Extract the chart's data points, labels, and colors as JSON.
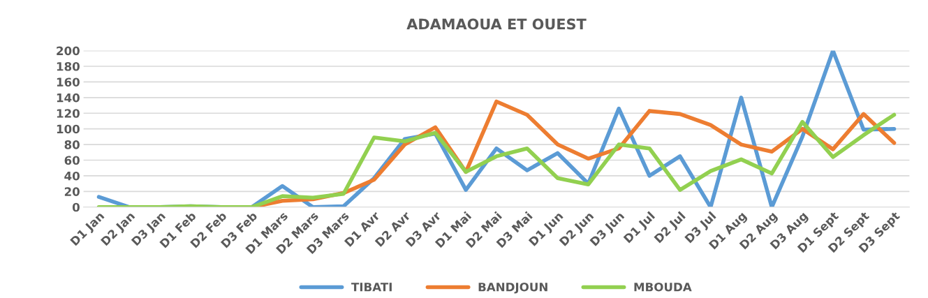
{
  "chart_data": {
    "type": "line",
    "title": "ADAMAOUA ET OUEST",
    "categories": [
      "D1 Jan",
      "D2 Jan",
      "D3 Jan",
      "D1 Feb",
      "D2 Feb",
      "D3 Feb",
      "D1 Mars",
      "D2 Mars",
      "D3 Mars",
      "D1 Avr",
      "D2 Avr",
      "D3 Avr",
      "D1 Mai",
      "D2 Mai",
      "D3 Mai",
      "D1 Jun",
      "D2 Jun",
      "D3 Jun",
      "D1 Jul",
      "D2 Jul",
      "D3 Jul",
      "D1 Aug",
      "D2 Aug",
      "D3 Aug",
      "D1 Sept",
      "D2 Sept",
      "D3 Sept"
    ],
    "series": [
      {
        "name": "TIBATI",
        "color": "#5b9bd5",
        "values": [
          13,
          0,
          0,
          1,
          0,
          0,
          27,
          0,
          1,
          37,
          87,
          94,
          22,
          75,
          47,
          69,
          30,
          126,
          40,
          65,
          0,
          140,
          0,
          90,
          200,
          99,
          100
        ]
      },
      {
        "name": "BANDJOUN",
        "color": "#ed7d31",
        "values": [
          null,
          null,
          null,
          null,
          0,
          0,
          8,
          10,
          18,
          35,
          80,
          102,
          45,
          135,
          118,
          80,
          62,
          75,
          123,
          119,
          105,
          80,
          71,
          100,
          74,
          119,
          82
        ]
      },
      {
        "name": "MBOUDA",
        "color": "#92d050",
        "values": [
          0,
          0,
          0,
          1,
          0,
          0,
          14,
          12,
          17,
          89,
          84,
          95,
          45,
          65,
          75,
          37,
          29,
          80,
          75,
          22,
          46,
          61,
          43,
          109,
          64,
          92,
          118
        ]
      }
    ],
    "ylim": [
      0,
      200
    ],
    "yticks": [
      0,
      20,
      40,
      60,
      80,
      100,
      120,
      140,
      160,
      180,
      200
    ],
    "grid": "y",
    "legend": "bottom",
    "marker": "none",
    "line_style": "solid"
  }
}
